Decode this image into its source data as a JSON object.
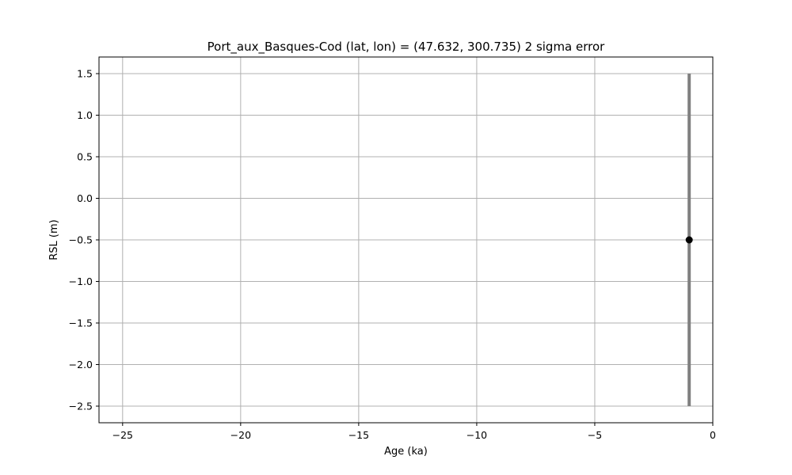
{
  "chart_data": {
    "type": "scatter",
    "title": "Port_aux_Basques-Cod (lat, lon) = (47.632, 300.735)  2 sigma error",
    "xlabel": "Age (ka)",
    "ylabel": "RSL (m)",
    "xlim": [
      -26,
      0
    ],
    "ylim": [
      -2.7,
      1.7
    ],
    "xticks": [
      -25,
      -20,
      -15,
      -10,
      -5,
      0
    ],
    "xtick_labels": [
      "−25",
      "−20",
      "−15",
      "−10",
      "−5",
      "0"
    ],
    "yticks": [
      -2.5,
      -2.0,
      -1.5,
      -1.0,
      -0.5,
      0.0,
      0.5,
      1.0,
      1.5
    ],
    "ytick_labels": [
      "−2.5",
      "−2.0",
      "−1.5",
      "−1.0",
      "−0.5",
      "0.0",
      "0.5",
      "1.0",
      "1.5"
    ],
    "grid": true,
    "points": [
      {
        "x": -1.0,
        "y": -0.5,
        "y_err_lower": 2.0,
        "y_err_upper": 2.0
      }
    ],
    "colors": {
      "marker": "#000000",
      "errorbar": "#808080",
      "grid": "#b0b0b0"
    }
  }
}
